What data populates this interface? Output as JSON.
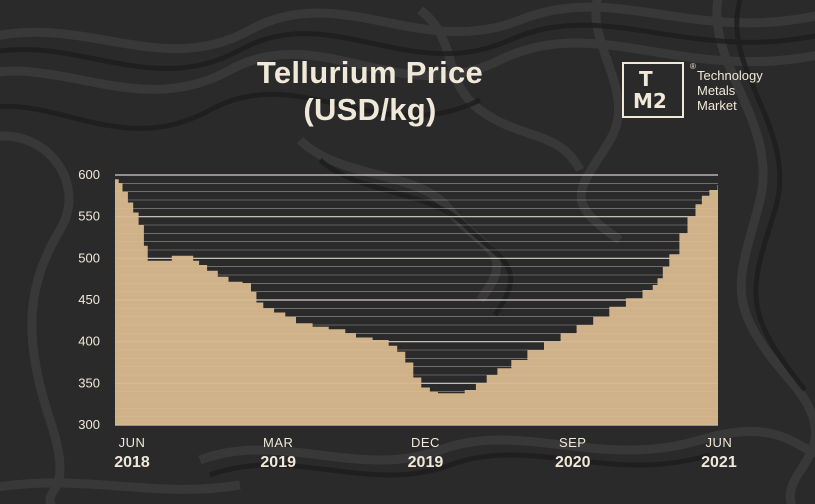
{
  "colors": {
    "background": "#2b2b2b",
    "area_fill": "#d9b98f",
    "gridline": "#f3efe6",
    "text": "#f0e8d8"
  },
  "title_line1": "Tellurium Price",
  "title_line2": "(USD/kg)",
  "logo": {
    "letter_top": "T",
    "letters_bottom": "M2",
    "registered": "®",
    "brand_lines": [
      "Technology",
      "Metals",
      "Market"
    ]
  },
  "chart_data": {
    "type": "area",
    "title": "Tellurium Price (USD/kg)",
    "xlabel": "",
    "ylabel": "",
    "ylim": [
      300,
      600
    ],
    "y_ticks": [
      300,
      350,
      400,
      450,
      500,
      550,
      600
    ],
    "grid": true,
    "x_ticks": [
      {
        "date": "2018-06",
        "month": "JUN",
        "year": "2018"
      },
      {
        "date": "2019-03",
        "month": "MAR",
        "year": "2019"
      },
      {
        "date": "2019-12",
        "month": "DEC",
        "year": "2019"
      },
      {
        "date": "2020-09",
        "month": "SEP",
        "year": "2020"
      },
      {
        "date": "2021-06",
        "month": "JUN",
        "year": "2021"
      }
    ],
    "series": [
      {
        "points": [
          [
            "2018-06-01",
            595
          ],
          [
            "2018-06-08",
            590
          ],
          [
            "2018-06-15",
            580
          ],
          [
            "2018-06-25",
            567
          ],
          [
            "2018-07-05",
            555
          ],
          [
            "2018-07-15",
            540
          ],
          [
            "2018-07-25",
            515
          ],
          [
            "2018-08-01",
            497
          ],
          [
            "2018-09-05",
            497
          ],
          [
            "2018-09-15",
            503
          ],
          [
            "2018-10-10",
            503
          ],
          [
            "2018-10-25",
            497
          ],
          [
            "2018-11-05",
            492
          ],
          [
            "2018-11-20",
            485
          ],
          [
            "2018-12-10",
            478
          ],
          [
            "2018-12-30",
            472
          ],
          [
            "2019-01-25",
            470
          ],
          [
            "2019-02-10",
            460
          ],
          [
            "2019-02-20",
            447
          ],
          [
            "2019-03-05",
            440
          ],
          [
            "2019-03-25",
            435
          ],
          [
            "2019-04-15",
            430
          ],
          [
            "2019-05-05",
            422
          ],
          [
            "2019-06-05",
            418
          ],
          [
            "2019-07-05",
            415
          ],
          [
            "2019-08-05",
            410
          ],
          [
            "2019-08-25",
            405
          ],
          [
            "2019-09-25",
            402
          ],
          [
            "2019-10-25",
            395
          ],
          [
            "2019-11-10",
            388
          ],
          [
            "2019-11-25",
            375
          ],
          [
            "2019-12-10",
            357
          ],
          [
            "2019-12-25",
            345
          ],
          [
            "2020-01-10",
            340
          ],
          [
            "2020-01-25",
            338
          ],
          [
            "2020-02-25",
            338
          ],
          [
            "2020-03-15",
            342
          ],
          [
            "2020-04-05",
            350
          ],
          [
            "2020-04-25",
            360
          ],
          [
            "2020-05-15",
            368
          ],
          [
            "2020-06-10",
            378
          ],
          [
            "2020-07-10",
            390
          ],
          [
            "2020-08-10",
            400
          ],
          [
            "2020-09-10",
            410
          ],
          [
            "2020-10-10",
            420
          ],
          [
            "2020-11-10",
            430
          ],
          [
            "2020-12-10",
            442
          ],
          [
            "2021-01-10",
            452
          ],
          [
            "2021-02-10",
            462
          ],
          [
            "2021-03-01",
            468
          ],
          [
            "2021-03-10",
            476
          ],
          [
            "2021-03-20",
            490
          ],
          [
            "2021-04-01",
            505
          ],
          [
            "2021-04-20",
            530
          ],
          [
            "2021-05-05",
            550
          ],
          [
            "2021-05-20",
            565
          ],
          [
            "2021-06-01",
            575
          ],
          [
            "2021-06-15",
            582
          ],
          [
            "2021-06-30",
            588
          ]
        ]
      }
    ]
  }
}
